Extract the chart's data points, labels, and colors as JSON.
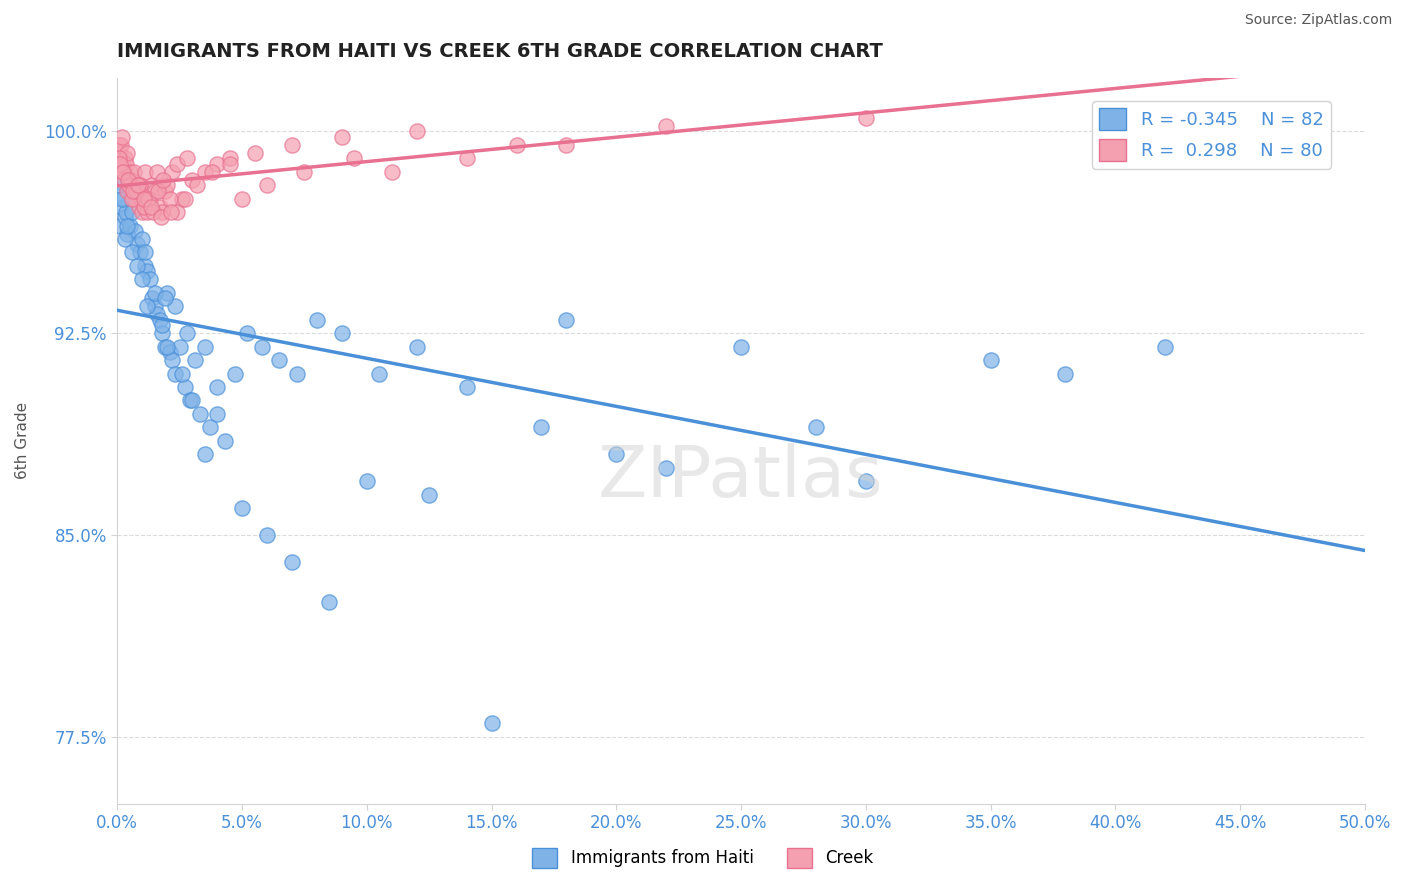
{
  "title": "IMMIGRANTS FROM HAITI VS CREEK 6TH GRADE CORRELATION CHART",
  "source": "Source: ZipAtlas.com",
  "xlabel": "",
  "ylabel": "6th Grade",
  "xlim": [
    0.0,
    50.0
  ],
  "ylim": [
    75.0,
    102.0
  ],
  "yticks": [
    77.5,
    85.0,
    92.5,
    100.0
  ],
  "xticks": [
    0.0,
    5.0,
    10.0,
    15.0,
    20.0,
    25.0,
    30.0,
    35.0,
    40.0,
    45.0,
    50.0
  ],
  "legend1_label": "Immigrants from Haiti",
  "legend2_label": "Creek",
  "R1": -0.345,
  "N1": 82,
  "R2": 0.298,
  "N2": 80,
  "color_haiti": "#7fb3e8",
  "color_creek": "#f4a0b0",
  "color_haiti_line": "#4a90d9",
  "color_creek_line": "#e87090",
  "background_color": "#ffffff",
  "watermark": "ZIPatlas",
  "haiti_x": [
    0.1,
    0.15,
    0.2,
    0.25,
    0.3,
    0.35,
    0.4,
    0.5,
    0.6,
    0.7,
    0.8,
    0.9,
    1.0,
    1.1,
    1.2,
    1.3,
    1.4,
    1.5,
    1.6,
    1.7,
    1.8,
    1.9,
    2.0,
    2.1,
    2.2,
    2.3,
    2.5,
    2.7,
    2.9,
    3.1,
    3.3,
    3.5,
    3.7,
    4.0,
    4.3,
    4.7,
    5.2,
    5.8,
    6.5,
    7.2,
    8.0,
    9.0,
    10.5,
    12.0,
    14.0,
    17.0,
    20.0,
    25.0,
    30.0,
    38.0,
    0.1,
    0.2,
    0.3,
    0.5,
    0.6,
    0.8,
    1.0,
    1.2,
    1.5,
    1.8,
    2.0,
    2.3,
    2.6,
    3.0,
    3.5,
    4.0,
    5.0,
    6.0,
    7.0,
    8.5,
    10.0,
    12.5,
    15.0,
    18.0,
    22.0,
    28.0,
    35.0,
    42.0,
    0.4,
    1.1,
    1.9,
    2.8
  ],
  "haiti_y": [
    96.5,
    97.2,
    98.1,
    97.5,
    96.8,
    97.0,
    96.2,
    96.5,
    97.0,
    96.3,
    95.8,
    95.5,
    96.0,
    95.0,
    94.8,
    94.5,
    93.8,
    93.5,
    93.2,
    93.0,
    92.5,
    92.0,
    94.0,
    91.8,
    91.5,
    91.0,
    92.0,
    90.5,
    90.0,
    91.5,
    89.5,
    92.0,
    89.0,
    90.5,
    88.5,
    91.0,
    92.5,
    92.0,
    91.5,
    91.0,
    93.0,
    92.5,
    91.0,
    92.0,
    90.5,
    89.0,
    88.0,
    92.0,
    87.0,
    91.0,
    98.0,
    97.5,
    96.0,
    97.8,
    95.5,
    95.0,
    94.5,
    93.5,
    94.0,
    92.8,
    92.0,
    93.5,
    91.0,
    90.0,
    88.0,
    89.5,
    86.0,
    85.0,
    84.0,
    82.5,
    87.0,
    86.5,
    78.0,
    93.0,
    87.5,
    89.0,
    91.5,
    92.0,
    96.5,
    95.5,
    93.8,
    92.5
  ],
  "creek_x": [
    0.05,
    0.1,
    0.15,
    0.2,
    0.25,
    0.3,
    0.35,
    0.4,
    0.45,
    0.5,
    0.55,
    0.6,
    0.65,
    0.7,
    0.75,
    0.8,
    0.85,
    0.9,
    0.95,
    1.0,
    1.1,
    1.2,
    1.3,
    1.4,
    1.5,
    1.6,
    1.7,
    1.8,
    1.9,
    2.0,
    2.2,
    2.4,
    2.6,
    2.8,
    3.0,
    3.5,
    4.0,
    4.5,
    5.5,
    7.0,
    9.0,
    12.0,
    16.0,
    22.0,
    30.0,
    0.08,
    0.18,
    0.28,
    0.38,
    0.48,
    0.6,
    0.75,
    0.9,
    1.05,
    1.25,
    1.45,
    1.65,
    1.85,
    2.1,
    2.4,
    2.7,
    3.2,
    3.8,
    4.5,
    5.0,
    6.0,
    7.5,
    9.5,
    11.0,
    14.0,
    18.0,
    0.12,
    0.22,
    0.42,
    0.62,
    0.82,
    1.05,
    1.35,
    1.75,
    2.15
  ],
  "creek_y": [
    99.5,
    99.2,
    99.5,
    99.8,
    98.5,
    99.0,
    98.8,
    99.2,
    98.0,
    98.5,
    98.2,
    97.8,
    98.5,
    97.5,
    98.0,
    97.8,
    97.2,
    98.0,
    97.5,
    97.0,
    98.5,
    97.0,
    97.5,
    98.0,
    97.8,
    98.5,
    97.2,
    97.0,
    97.8,
    98.0,
    98.5,
    98.8,
    97.5,
    99.0,
    98.2,
    98.5,
    98.8,
    99.0,
    99.2,
    99.5,
    99.8,
    100.0,
    99.5,
    100.2,
    100.5,
    99.0,
    98.5,
    98.2,
    97.8,
    98.0,
    97.5,
    97.8,
    98.0,
    97.2,
    97.5,
    97.0,
    97.8,
    98.2,
    97.5,
    97.0,
    97.5,
    98.0,
    98.5,
    98.8,
    97.5,
    98.0,
    98.5,
    99.0,
    98.5,
    99.0,
    99.5,
    98.8,
    98.5,
    98.2,
    97.8,
    98.0,
    97.5,
    97.2,
    96.8,
    97.0
  ]
}
